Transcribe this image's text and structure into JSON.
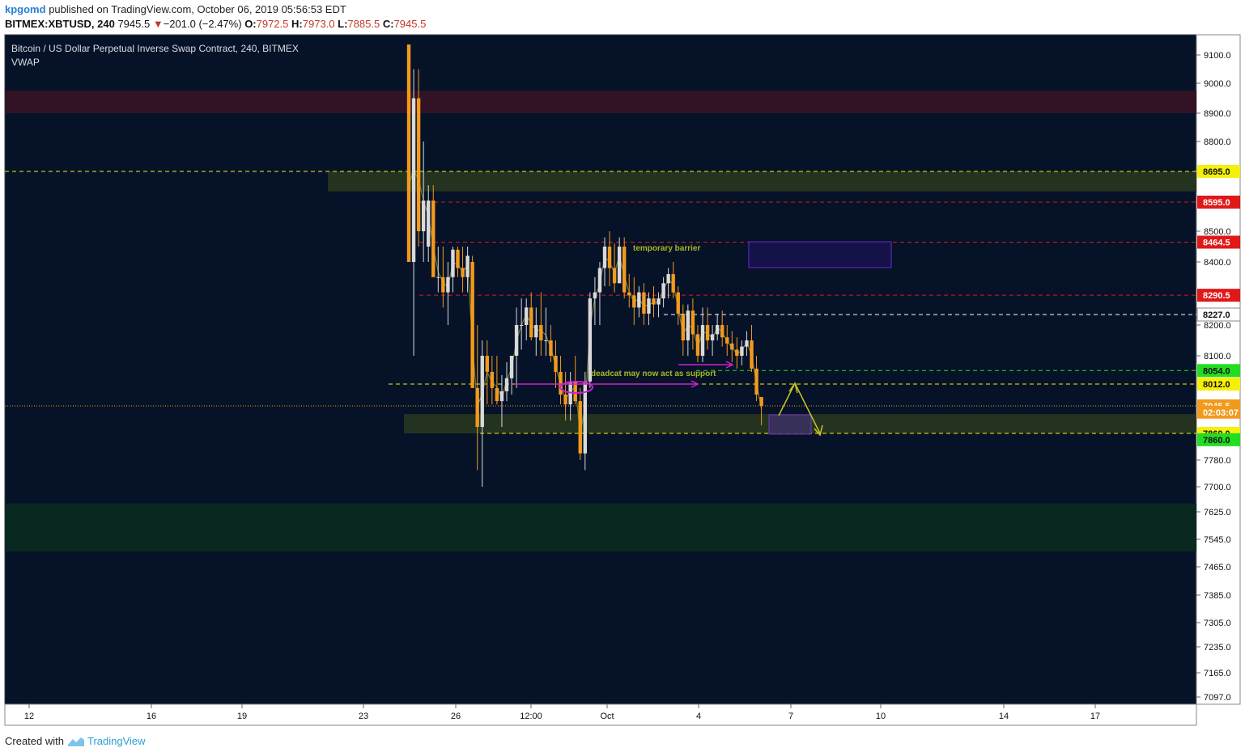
{
  "header": {
    "user": "kpgomd",
    "published": "published on TradingView.com, October 06, 2019 05:56:53 EDT",
    "symbol": "BITMEX:XBTUSD, 240",
    "last": "7945.5",
    "down_arrow": "▼",
    "change": "−201.0 (−2.47%)",
    "o_label": "O:",
    "o": "7972.5",
    "h_label": "H:",
    "h": "7973.0",
    "l_label": "L:",
    "l": "7885.5",
    "c_label": "C:",
    "c": "7945.5"
  },
  "legend": {
    "title": "Bitcoin / US Dollar Perpetual Inverse Swap Contract, 240, BITMEX",
    "indicator": "VWAP"
  },
  "footer": {
    "created": "Created with",
    "brand": "TradingView",
    "logo_icon": "tradingview-logo-icon"
  },
  "chart_data": {
    "type": "candlestick",
    "colors": {
      "background": "#061228",
      "up_candle": "#d9d9d9",
      "down_candle": "#f29a1c",
      "vwap": "#6b7a3a",
      "axis_text": "#111111"
    },
    "y_ticks": [
      "9100.0",
      "9000.0",
      "8900.0",
      "8800.0",
      "8500.0",
      "8400.0",
      "8200.0",
      "8100.0",
      "7780.0",
      "7700.0",
      "7625.0",
      "7545.0",
      "7465.0",
      "7385.0",
      "7305.0",
      "7235.0",
      "7165.0",
      "7097.0"
    ],
    "x_ticks": [
      "12",
      "16",
      "19",
      "23",
      "26",
      "12:00",
      "Oct",
      "4",
      "7",
      "10",
      "14",
      "17"
    ],
    "price_labels": [
      {
        "text": "8695.0",
        "bg": "#f5f00a",
        "fg": "#111111"
      },
      {
        "text": "8595.0",
        "bg": "#e01818",
        "fg": "#ffffff"
      },
      {
        "text": "8464.5",
        "bg": "#e01818",
        "fg": "#ffffff"
      },
      {
        "text": "8290.5",
        "bg": "#e01818",
        "fg": "#ffffff"
      },
      {
        "text": "8227.0",
        "bg": "#ffffff",
        "fg": "#111111"
      },
      {
        "text": "8054.0",
        "bg": "#22dd22",
        "fg": "#111111"
      },
      {
        "text": "8012.0",
        "bg": "#f5f00a",
        "fg": "#111111"
      },
      {
        "text": "7945.5",
        "bg": "#f29a1c",
        "fg": "#ffffff"
      },
      {
        "text": "02:03:07",
        "bg": "#f29a1c",
        "fg": "#ffffff"
      },
      {
        "text": "7860.0",
        "bg": "#f5f00a",
        "fg": "#111111"
      },
      {
        "text": "7860.0",
        "bg": "#22dd22",
        "fg": "#111111"
      }
    ],
    "horizontal_levels": [
      {
        "value": 8695.0,
        "color": "#f5f00a"
      },
      {
        "value": 8595.0,
        "color": "#e01818"
      },
      {
        "value": 8464.5,
        "color": "#e01818"
      },
      {
        "value": 8290.5,
        "color": "#e01818"
      },
      {
        "value": 8227.0,
        "color": "#ffffff"
      },
      {
        "value": 8054.0,
        "color": "#22dd22"
      },
      {
        "value": 8012.0,
        "color": "#f5f00a"
      },
      {
        "value": 7945.5,
        "color": "#f29a1c"
      },
      {
        "value": 7860.0,
        "color": "#f5f00a"
      }
    ],
    "zones": [
      {
        "from": 8900,
        "to": 8975,
        "color": "#3a1424"
      },
      {
        "from": 8630,
        "to": 8695,
        "color": "#2a3a1e"
      },
      {
        "from": 7860,
        "to": 7920,
        "color": "#2a3a1e"
      },
      {
        "from": 7510,
        "to": 7650,
        "color": "#0a2e1e"
      }
    ],
    "annotations": [
      "temporary barrier",
      "deadcat may now act as support"
    ],
    "candles": [
      [
        9150,
        9150,
        8400,
        8400
      ],
      [
        8400,
        9050,
        8100,
        8950
      ],
      [
        8950,
        9050,
        8450,
        8500
      ],
      [
        8500,
        8800,
        8400,
        8600
      ],
      [
        8450,
        8650,
        8400,
        8600
      ],
      [
        8600,
        8650,
        8350,
        8350
      ],
      [
        8350,
        8450,
        8300,
        8350
      ],
      [
        8350,
        8450,
        8250,
        8300
      ],
      [
        8300,
        8400,
        8200,
        8350
      ],
      [
        8350,
        8450,
        8300,
        8440
      ],
      [
        8440,
        8450,
        8350,
        8380
      ],
      [
        8380,
        8450,
        8300,
        8350
      ],
      [
        8350,
        8450,
        8300,
        8420
      ],
      [
        8400,
        8420,
        8000,
        8000
      ],
      [
        8000,
        8200,
        7750,
        7880
      ],
      [
        7880,
        8150,
        7700,
        8100
      ],
      [
        8100,
        8150,
        7950,
        8050
      ],
      [
        8050,
        8100,
        7950,
        8000
      ],
      [
        8000,
        8100,
        7950,
        7960
      ],
      [
        7960,
        8040,
        7880,
        7990
      ],
      [
        7990,
        8080,
        7960,
        8030
      ],
      [
        8030,
        8100,
        7980,
        8100
      ],
      [
        8100,
        8250,
        8000,
        8200
      ],
      [
        8200,
        8280,
        8120,
        8200
      ],
      [
        8200,
        8280,
        8150,
        8250
      ],
      [
        8250,
        8300,
        8150,
        8160
      ],
      [
        8160,
        8250,
        8100,
        8200
      ],
      [
        8200,
        8300,
        8100,
        8150
      ],
      [
        8150,
        8250,
        8100,
        8150
      ],
      [
        8150,
        8200,
        8080,
        8100
      ],
      [
        8100,
        8150,
        8000,
        8050
      ],
      [
        8050,
        8100,
        7950,
        7980
      ],
      [
        7980,
        8050,
        7900,
        7950
      ],
      [
        7950,
        8050,
        7900,
        8020
      ],
      [
        8020,
        8100,
        7950,
        7960
      ],
      [
        7960,
        8000,
        7780,
        7800
      ],
      [
        7800,
        8050,
        7750,
        8020
      ],
      [
        8020,
        8300,
        8000,
        8280
      ],
      [
        8280,
        8350,
        8200,
        8300
      ],
      [
        8300,
        8400,
        8200,
        8380
      ],
      [
        8380,
        8480,
        8320,
        8450
      ],
      [
        8450,
        8500,
        8320,
        8380
      ],
      [
        8380,
        8460,
        8300,
        8330
      ],
      [
        8330,
        8480,
        8330,
        8450
      ],
      [
        8450,
        8480,
        8280,
        8300
      ],
      [
        8300,
        8360,
        8250,
        8290
      ],
      [
        8290,
        8350,
        8200,
        8250
      ],
      [
        8250,
        8320,
        8220,
        8300
      ],
      [
        8300,
        8330,
        8200,
        8230
      ],
      [
        8230,
        8300,
        8200,
        8280
      ],
      [
        8280,
        8320,
        8220,
        8260
      ],
      [
        8260,
        8300,
        8220,
        8280
      ],
      [
        8280,
        8350,
        8250,
        8330
      ],
      [
        8330,
        8380,
        8280,
        8360
      ],
      [
        8360,
        8400,
        8280,
        8300
      ],
      [
        8300,
        8320,
        8200,
        8230
      ],
      [
        8230,
        8260,
        8100,
        8150
      ],
      [
        8150,
        8260,
        8100,
        8240
      ],
      [
        8240,
        8280,
        8120,
        8170
      ],
      [
        8170,
        8200,
        8080,
        8100
      ],
      [
        8100,
        8250,
        8080,
        8200
      ],
      [
        8200,
        8250,
        8120,
        8150
      ],
      [
        8150,
        8200,
        8100,
        8170
      ],
      [
        8170,
        8230,
        8150,
        8200
      ],
      [
        8200,
        8240,
        8130,
        8160
      ],
      [
        8160,
        8200,
        8100,
        8140
      ],
      [
        8140,
        8180,
        8080,
        8120
      ],
      [
        8120,
        8160,
        8060,
        8100
      ],
      [
        8100,
        8150,
        8070,
        8130
      ],
      [
        8130,
        8180,
        8100,
        8150
      ],
      [
        8150,
        8200,
        8050,
        8060
      ],
      [
        8060,
        8100,
        7960,
        7980
      ],
      [
        7972.5,
        7973,
        7885.5,
        7945.5
      ]
    ]
  }
}
